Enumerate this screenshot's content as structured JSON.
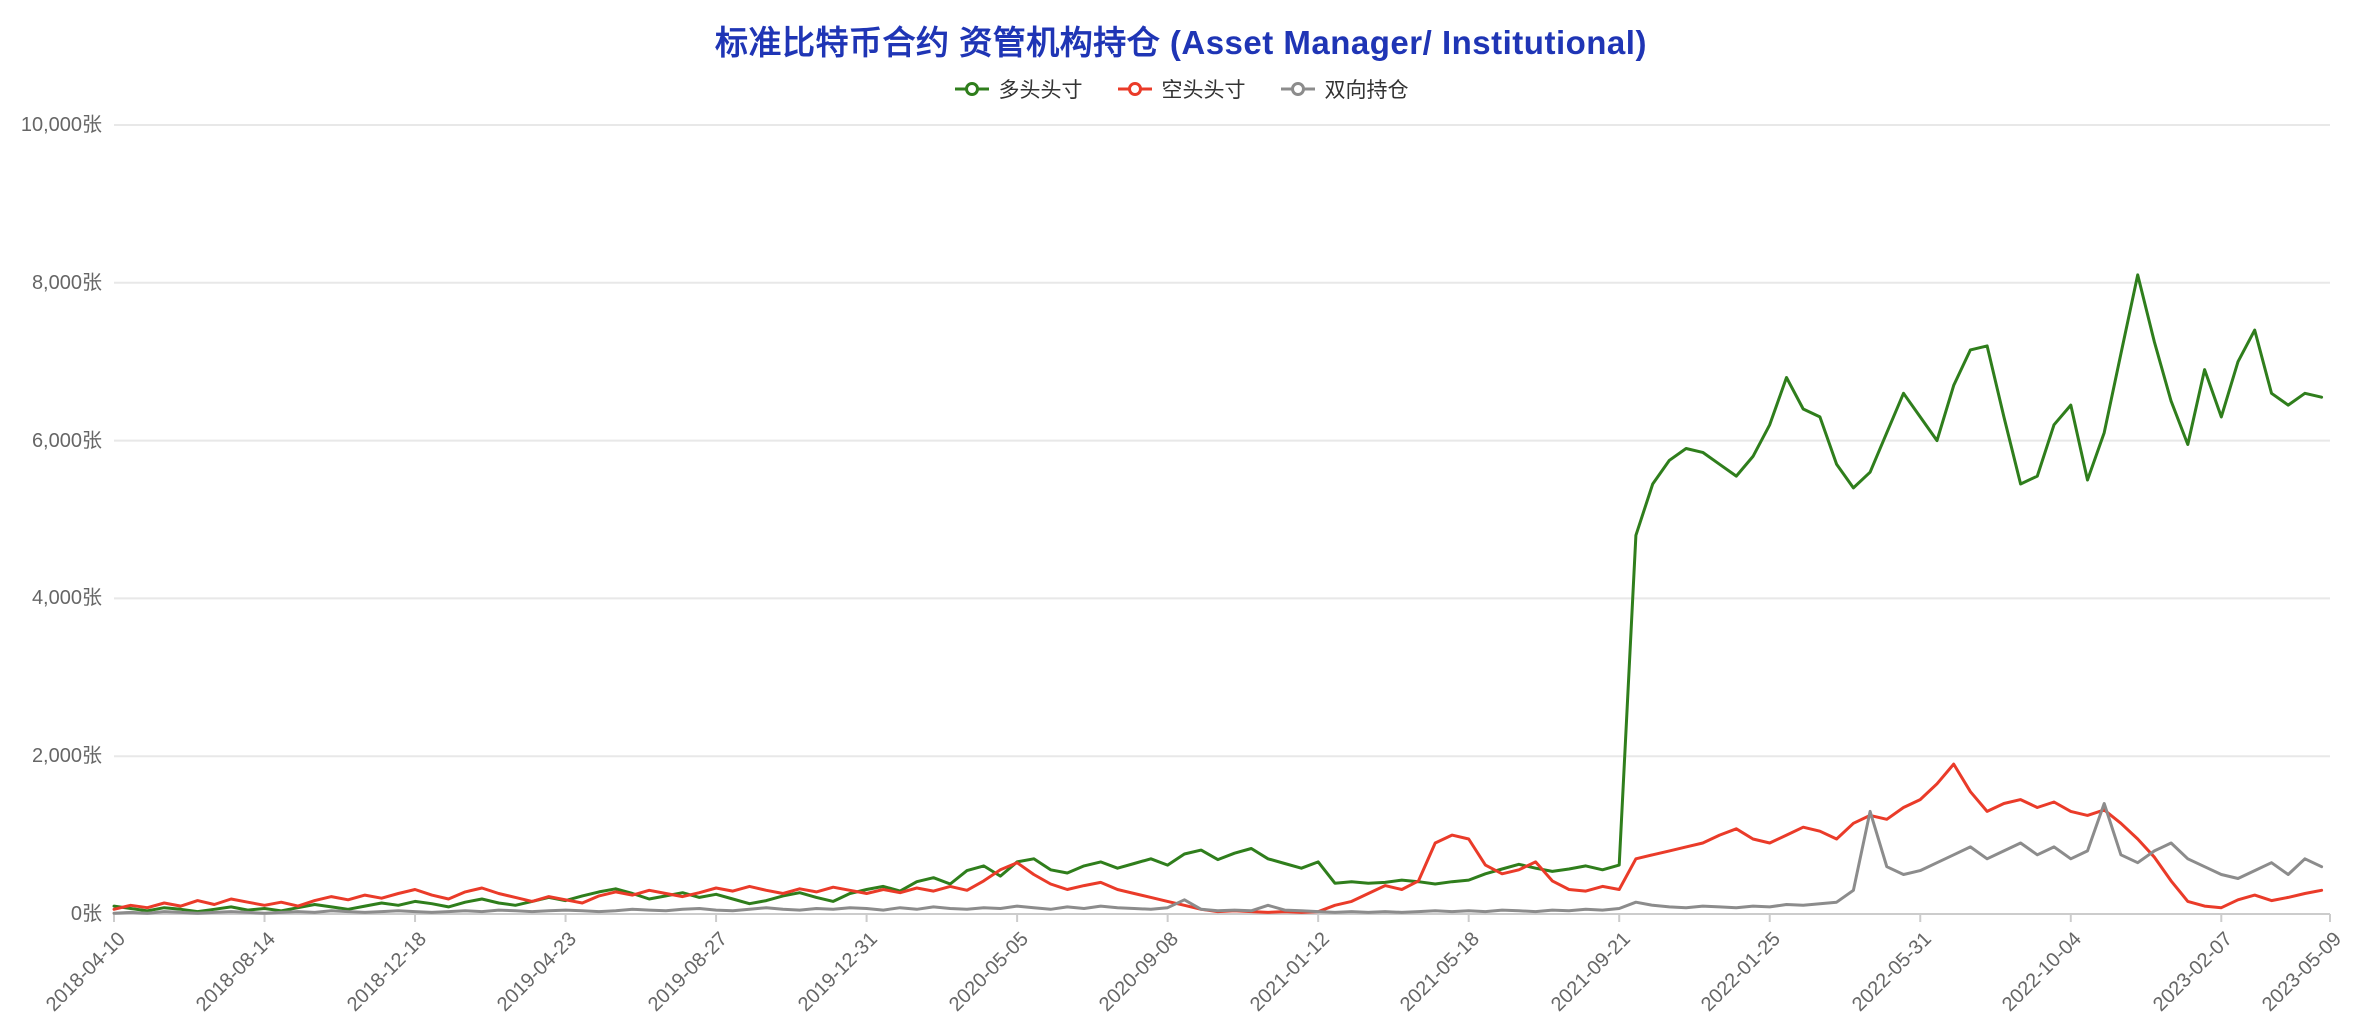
{
  "chart_data": {
    "type": "line",
    "title": "标准比特币合约 资管机构持仓 (Asset Manager/ Institutional)",
    "title_color": "#1f35b5",
    "background": "#ffffff",
    "legend_position": "top-center",
    "grid": {
      "horizontal": true,
      "vertical": false
    },
    "ylim": [
      0,
      10000
    ],
    "y_axis": {
      "unit": "张",
      "tick_values": [
        0,
        2000,
        4000,
        6000,
        8000,
        10000
      ],
      "tick_labels": [
        "0张",
        "2,000张",
        "4,000张",
        "6,000张",
        "8,000张",
        "10,000张"
      ]
    },
    "x_axis": {
      "label_rotation_deg": -45,
      "total_weeks": 265,
      "tick_weeks": [
        0,
        18,
        36,
        54,
        72,
        90,
        108,
        126,
        144,
        162,
        180,
        198,
        216,
        234,
        252,
        265
      ],
      "tick_labels": [
        "2018-04-10",
        "2018-08-14",
        "2018-12-18",
        "2019-04-23",
        "2019-08-27",
        "2019-12-31",
        "2020-05-05",
        "2020-09-08",
        "2021-01-12",
        "2021-05-18",
        "2021-09-21",
        "2022-01-25",
        "2022-05-31",
        "2022-10-04",
        "2023-02-07",
        "2023-05-09"
      ],
      "x_range": [
        "2018-04-10",
        "2023-05-09"
      ]
    },
    "points_week_step": 2,
    "colors": {
      "grid": "#e8e8e8",
      "axis_line": "#cccccc",
      "axis_text": "#666666",
      "legend_text": "#333333"
    },
    "series": [
      {
        "key": "long-positions",
        "name": "多头头寸",
        "color": "#2f7e1c",
        "values": [
          100,
          70,
          40,
          80,
          60,
          30,
          60,
          90,
          50,
          70,
          40,
          80,
          120,
          90,
          60,
          100,
          140,
          110,
          160,
          130,
          90,
          150,
          190,
          140,
          110,
          160,
          210,
          170,
          230,
          280,
          320,
          260,
          190,
          230,
          270,
          210,
          250,
          190,
          130,
          170,
          230,
          270,
          210,
          160,
          260,
          310,
          350,
          290,
          410,
          460,
          380,
          550,
          610,
          480,
          660,
          700,
          560,
          520,
          610,
          660,
          580,
          640,
          700,
          620,
          760,
          810,
          690,
          770,
          830,
          700,
          640,
          580,
          660,
          390,
          410,
          390,
          400,
          430,
          410,
          380,
          410,
          430,
          510,
          570,
          630,
          580,
          540,
          570,
          610,
          560,
          620,
          4800,
          5450,
          5750,
          5900,
          5850,
          5700,
          5550,
          5800,
          6200,
          6800,
          6400,
          6300,
          5700,
          5400,
          5600,
          6100,
          6600,
          6300,
          6000,
          6700,
          7150,
          7200,
          6300,
          5450,
          5550,
          6200,
          6450,
          5500,
          6100,
          7100,
          8100,
          7250,
          6500,
          5950,
          6900,
          6300,
          7000,
          7400,
          6600,
          6450,
          6600,
          6550
        ]
      },
      {
        "key": "short-positions",
        "name": "空头头寸",
        "color": "#ea3b29",
        "values": [
          60,
          110,
          80,
          140,
          100,
          170,
          120,
          190,
          150,
          110,
          150,
          100,
          170,
          220,
          180,
          240,
          200,
          260,
          310,
          240,
          190,
          280,
          330,
          260,
          210,
          160,
          220,
          180,
          140,
          230,
          280,
          240,
          300,
          260,
          220,
          270,
          330,
          290,
          350,
          300,
          260,
          320,
          280,
          340,
          300,
          260,
          310,
          270,
          330,
          290,
          350,
          300,
          420,
          560,
          650,
          500,
          380,
          310,
          360,
          400,
          310,
          260,
          210,
          160,
          110,
          60,
          30,
          40,
          30,
          20,
          30,
          20,
          30,
          110,
          160,
          260,
          360,
          310,
          420,
          900,
          1000,
          950,
          620,
          510,
          560,
          660,
          420,
          310,
          290,
          350,
          310,
          700,
          750,
          800,
          850,
          900,
          1000,
          1080,
          950,
          900,
          1000,
          1100,
          1050,
          950,
          1150,
          1250,
          1200,
          1350,
          1450,
          1650,
          1900,
          1550,
          1300,
          1400,
          1450,
          1350,
          1420,
          1300,
          1250,
          1320,
          1150,
          950,
          720,
          420,
          160,
          100,
          80,
          180,
          240,
          170,
          210,
          260,
          300
        ]
      },
      {
        "key": "dual-positions",
        "name": "双向持仓",
        "color": "#8c8c8c",
        "values": [
          10,
          20,
          10,
          30,
          20,
          10,
          20,
          30,
          20,
          10,
          20,
          30,
          20,
          40,
          30,
          20,
          30,
          40,
          30,
          20,
          30,
          40,
          30,
          50,
          40,
          30,
          40,
          50,
          40,
          30,
          40,
          60,
          50,
          40,
          60,
          70,
          50,
          40,
          60,
          80,
          60,
          50,
          70,
          60,
          80,
          70,
          50,
          80,
          60,
          90,
          70,
          60,
          80,
          70,
          100,
          80,
          60,
          90,
          70,
          100,
          80,
          70,
          60,
          80,
          180,
          60,
          40,
          50,
          40,
          110,
          50,
          40,
          30,
          20,
          30,
          20,
          30,
          20,
          30,
          40,
          30,
          40,
          30,
          50,
          40,
          30,
          50,
          40,
          60,
          50,
          70,
          150,
          110,
          90,
          80,
          100,
          90,
          80,
          100,
          90,
          120,
          110,
          130,
          150,
          300,
          1300,
          600,
          500,
          550,
          650,
          750,
          850,
          700,
          800,
          900,
          750,
          850,
          700,
          800,
          1400,
          750,
          650,
          800,
          900,
          700,
          600,
          500,
          450,
          550,
          650,
          500,
          700,
          600
        ]
      }
    ]
  }
}
